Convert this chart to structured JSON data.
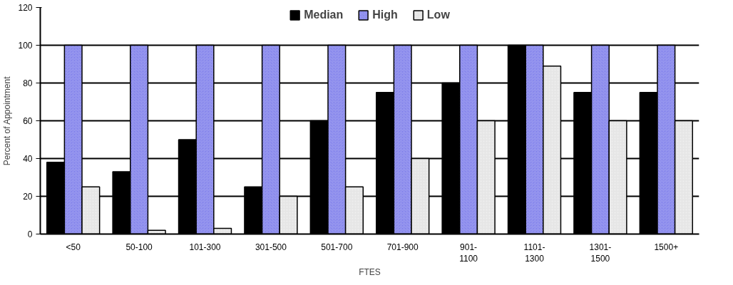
{
  "chart_data": {
    "type": "bar",
    "xlabel": "FTES",
    "ylabel": "Percent of Appointment",
    "categories": [
      "<50",
      "50-100",
      "101-300",
      "301-500",
      "501-700",
      "701-900",
      "901-1100",
      "1101-1300",
      "1301-1500",
      "1500+"
    ],
    "series": [
      {
        "name": "Median",
        "color": "#000000",
        "values": [
          38,
          33,
          50,
          25,
          60,
          75,
          80,
          100,
          75,
          75
        ]
      },
      {
        "name": "High",
        "color": "#7b7bea",
        "values": [
          100,
          100,
          100,
          100,
          100,
          100,
          100,
          100,
          100,
          100
        ]
      },
      {
        "name": "Low",
        "color": "#e6e6e6",
        "values": [
          25,
          2,
          3,
          20,
          25,
          40,
          60,
          89,
          60,
          60
        ]
      }
    ],
    "ylim": [
      0,
      120
    ],
    "yticks": [
      0,
      20,
      40,
      60,
      80,
      100,
      120
    ],
    "grid": "y",
    "legend": "top"
  }
}
